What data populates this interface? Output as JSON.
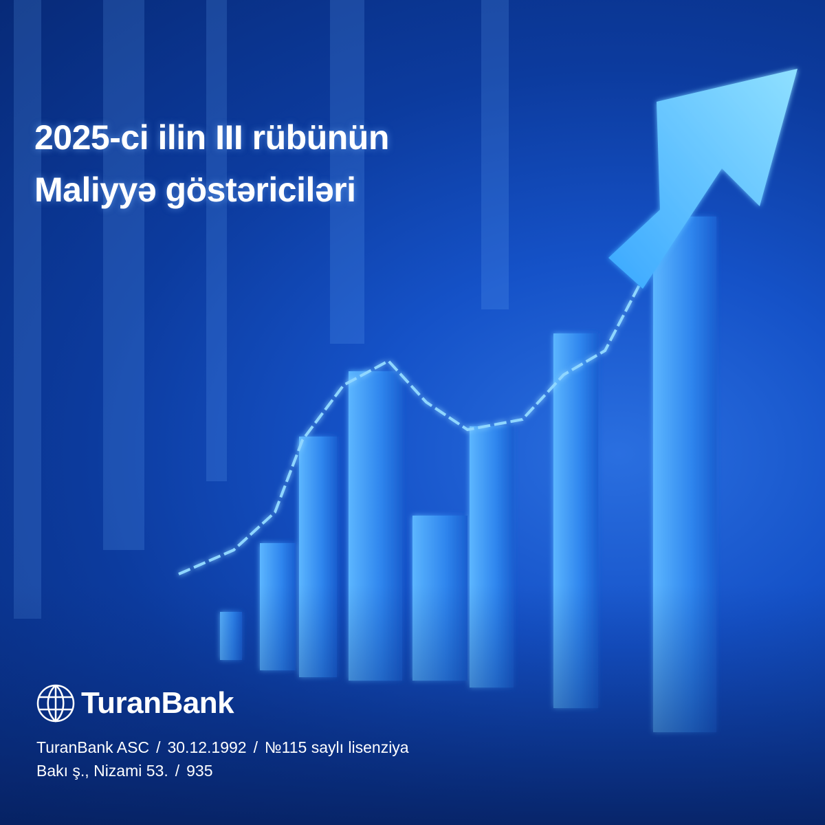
{
  "headline": {
    "line1": "2025-ci ilin III rübünün",
    "line2": "Maliyyə göstəriciləri"
  },
  "brand": {
    "name": "TuranBank",
    "logo_icon": "globe-icon"
  },
  "footer": {
    "company": "TuranBank ASC",
    "date": "30.12.1992",
    "license": "№115 saylı lisenziya",
    "address": "Bakı ş., Nizami 53.",
    "phone": "935",
    "separator": "/"
  },
  "colors": {
    "background": "#0c3b9e",
    "accent": "#4fb8ff",
    "text": "#ffffff"
  }
}
